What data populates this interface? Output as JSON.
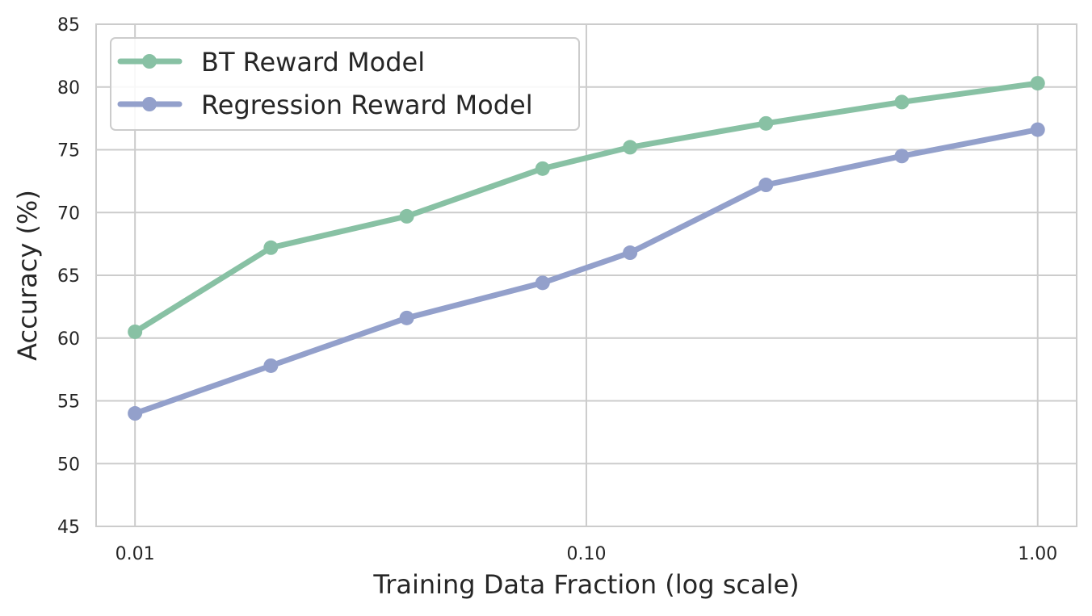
{
  "chart_data": {
    "type": "line",
    "title": "",
    "xlabel": "Training Data Fraction (log scale)",
    "ylabel": "Accuracy (%)",
    "xscale": "log",
    "xlim": [
      0.0082,
      1.22
    ],
    "ylim": [
      45,
      85
    ],
    "xticks": [
      0.01,
      0.1,
      1.0
    ],
    "xtick_labels": [
      "0.01",
      "0.10",
      "1.00"
    ],
    "yticks": [
      45,
      50,
      55,
      60,
      65,
      70,
      75,
      80,
      85
    ],
    "ytick_labels": [
      "45",
      "50",
      "55",
      "60",
      "65",
      "70",
      "75",
      "80",
      "85"
    ],
    "grid": true,
    "legend_position": "top-left",
    "x": [
      0.01,
      0.02,
      0.04,
      0.08,
      0.125,
      0.25,
      0.5,
      1.0
    ],
    "series": [
      {
        "name": "BT Reward Model",
        "color": "#88c1a4",
        "values": [
          60.5,
          67.2,
          69.7,
          73.5,
          75.2,
          77.1,
          78.8,
          80.3
        ]
      },
      {
        "name": "Regression Reward Model",
        "color": "#93a0cb",
        "values": [
          54.0,
          57.8,
          61.6,
          64.4,
          66.8,
          72.2,
          74.5,
          76.6
        ]
      }
    ]
  }
}
